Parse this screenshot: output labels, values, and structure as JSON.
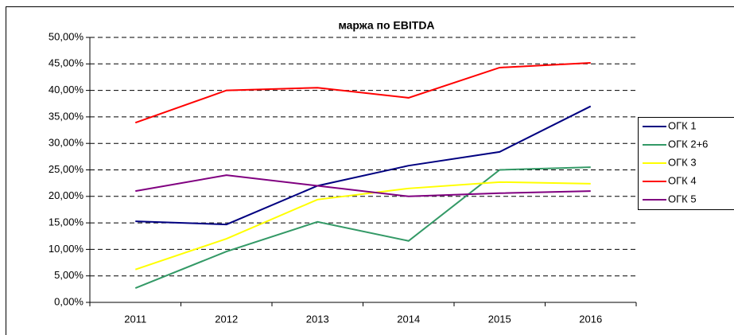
{
  "chart_data": {
    "type": "line",
    "title": "маржа по EBITDA",
    "categories": [
      "2011",
      "2012",
      "2013",
      "2014",
      "2015",
      "2016"
    ],
    "series": [
      {
        "name": "ОГК 1",
        "color": "#000080",
        "values": [
          15.3,
          14.7,
          22,
          25.8,
          28.4,
          37
        ]
      },
      {
        "name": "ОГК 2+6",
        "color": "#339966",
        "values": [
          2.7,
          9.6,
          15.2,
          11.6,
          25,
          25.5
        ]
      },
      {
        "name": "ОГК 3",
        "color": "#ffff00",
        "values": [
          6.2,
          12,
          19.4,
          21.5,
          22.7,
          22.4
        ]
      },
      {
        "name": "ОГК 4",
        "color": "#ff0000",
        "values": [
          33.9,
          40,
          40.5,
          38.6,
          44.3,
          45.2
        ]
      },
      {
        "name": "ОГК 5",
        "color": "#800080",
        "values": [
          21,
          24,
          22,
          20,
          20.6,
          21
        ]
      }
    ],
    "ylim": [
      0,
      50
    ],
    "yticks": [
      {
        "value": 0,
        "label": "0,00%"
      },
      {
        "value": 5,
        "label": "5,00%"
      },
      {
        "value": 10,
        "label": "10,00%"
      },
      {
        "value": 15,
        "label": "15,00%"
      },
      {
        "value": 20,
        "label": "20,00%"
      },
      {
        "value": 25,
        "label": "25,00%"
      },
      {
        "value": 30,
        "label": "30,00%"
      },
      {
        "value": 35,
        "label": "35,00%"
      },
      {
        "value": 40,
        "label": "40,00%"
      },
      {
        "value": 45,
        "label": "45,00%"
      },
      {
        "value": 50,
        "label": "50,00%"
      }
    ],
    "grid": true,
    "legend": "right"
  }
}
